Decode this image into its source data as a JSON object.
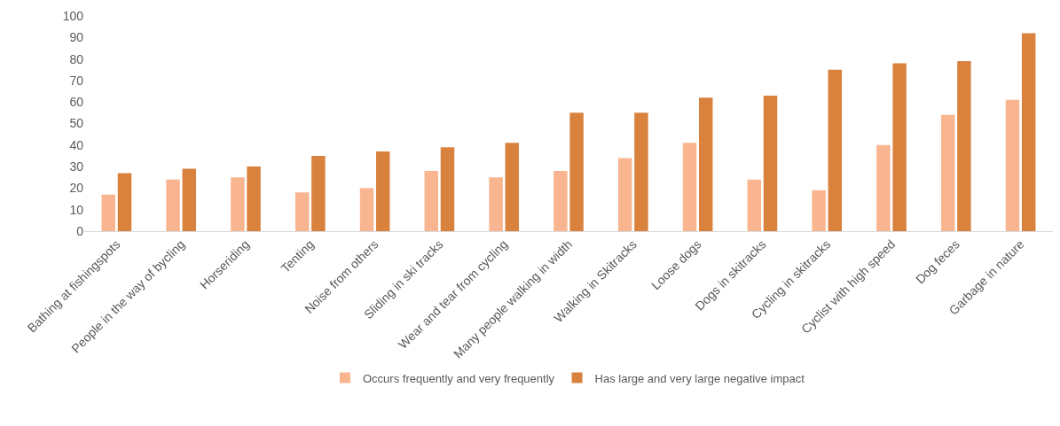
{
  "chart_data": {
    "type": "bar",
    "categories": [
      "Bathing at fishingspots",
      "People in the way of bycling",
      "Horseriding",
      "Tenting",
      "Noise from others",
      "Sliding in ski tracks",
      "Wear and tear from cycling",
      "Many people walking in width",
      "Walking in Skitracks",
      "Loose dogs",
      "Dogs in skitracks",
      "Cycling in skitracks",
      "Cyclist with high speed",
      "Dog feces",
      "Garbage in nature"
    ],
    "series": [
      {
        "name": "Occurs frequently and very frequently",
        "color": "#f8b58f",
        "values": [
          17,
          24,
          25,
          18,
          20,
          28,
          25,
          28,
          34,
          41,
          24,
          19,
          40,
          54,
          61
        ]
      },
      {
        "name": "Has large and very large negative impact",
        "color": "#d9823e",
        "values": [
          27,
          29,
          30,
          35,
          37,
          39,
          41,
          55,
          55,
          62,
          63,
          75,
          78,
          79,
          92
        ]
      }
    ],
    "ylim": [
      0,
      100
    ],
    "yticks": [
      0,
      10,
      20,
      30,
      40,
      50,
      60,
      70,
      80,
      90,
      100
    ],
    "grid": false,
    "legend": "bottom"
  }
}
